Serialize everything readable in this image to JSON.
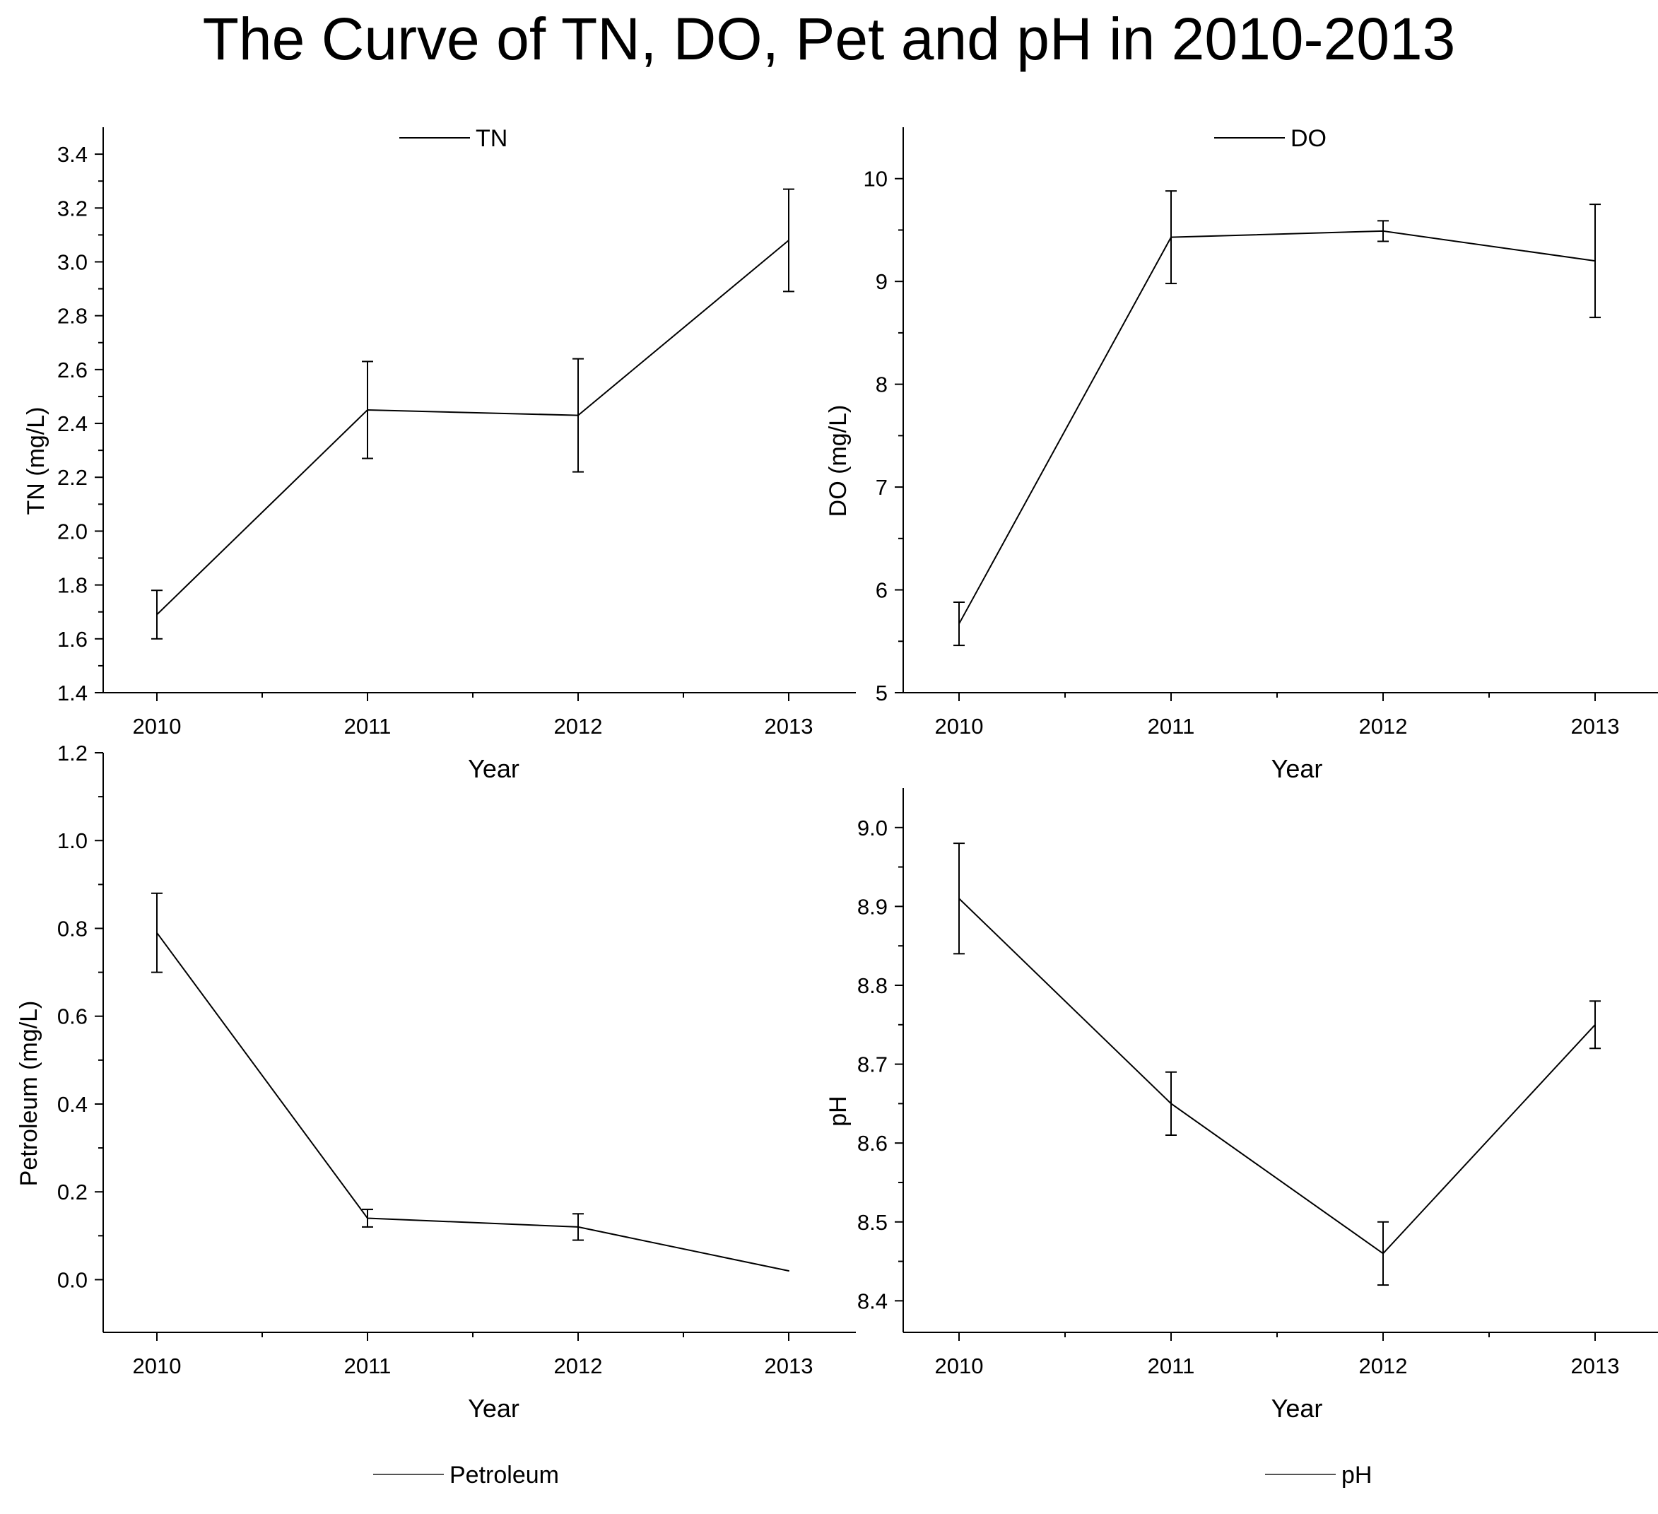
{
  "title": "The Curve of TN, DO, Pet and pH in 2010-2013",
  "chart_data": [
    {
      "type": "line",
      "title": "",
      "xlabel": "Year",
      "ylabel": "TN (mg/L)",
      "legend": "TN",
      "legend_position": "top-center",
      "categories": [
        "2010",
        "2011",
        "2012",
        "2013"
      ],
      "values": [
        1.69,
        2.45,
        2.43,
        3.08
      ],
      "error": [
        0.09,
        0.18,
        0.21,
        0.19
      ],
      "ylim": [
        1.4,
        3.5
      ],
      "yticks": [
        1.4,
        1.6,
        1.8,
        2.0,
        2.2,
        2.4,
        2.6,
        2.8,
        3.0,
        3.2,
        3.4
      ],
      "ytick_labels": [
        "1.4",
        "1.6",
        "1.8",
        "2.0",
        "2.2",
        "2.4",
        "2.6",
        "2.8",
        "3.0",
        "3.2",
        "3.4"
      ],
      "color": "#000000"
    },
    {
      "type": "line",
      "title": "",
      "xlabel": "Year",
      "ylabel": "DO (mg/L)",
      "legend": "DO",
      "legend_position": "top-center",
      "categories": [
        "2010",
        "2011",
        "2012",
        "2013"
      ],
      "values": [
        5.67,
        9.43,
        9.49,
        9.2
      ],
      "error": [
        0.21,
        0.45,
        0.1,
        0.55
      ],
      "ylim": [
        5,
        10.5
      ],
      "yticks": [
        5,
        6,
        7,
        8,
        9,
        10
      ],
      "ytick_labels": [
        "5",
        "6",
        "7",
        "8",
        "9",
        "10"
      ],
      "color": "#000000"
    },
    {
      "type": "line",
      "title": "",
      "xlabel": "Year",
      "ylabel": "Petroleum (mg/L)",
      "legend": "Petroleum",
      "legend_position": "bottom-center",
      "categories": [
        "2010",
        "2011",
        "2012",
        "2013"
      ],
      "values": [
        0.79,
        0.14,
        0.12,
        0.02
      ],
      "error": [
        0.09,
        0.02,
        0.03,
        0
      ],
      "ylim": [
        -0.12,
        1.2
      ],
      "yticks": [
        0.0,
        0.2,
        0.4,
        0.6,
        0.8,
        1.0,
        1.2
      ],
      "ytick_labels": [
        "0.0",
        "0.2",
        "0.4",
        "0.6",
        "0.8",
        "1.0",
        "1.2"
      ],
      "color": "#000000"
    },
    {
      "type": "line",
      "title": "",
      "xlabel": "Year",
      "ylabel": "pH",
      "legend": "pH",
      "legend_position": "bottom-center",
      "categories": [
        "2010",
        "2011",
        "2012",
        "2013"
      ],
      "values": [
        8.91,
        8.65,
        8.46,
        8.75
      ],
      "error": [
        0.07,
        0.04,
        0.04,
        0.03
      ],
      "ylim": [
        8.36,
        9.05
      ],
      "yticks": [
        8.4,
        8.5,
        8.6,
        8.7,
        8.8,
        8.9,
        9.0
      ],
      "ytick_labels": [
        "8.4",
        "8.5",
        "8.6",
        "8.7",
        "8.8",
        "8.9",
        "9.0"
      ],
      "color": "#000000"
    }
  ]
}
